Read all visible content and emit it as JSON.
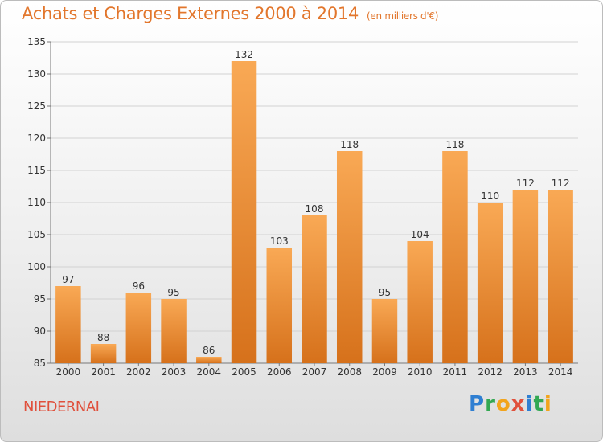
{
  "title": "Achats et Charges Externes 2000 à 2014",
  "subtitle": "(en milliers d'€)",
  "commune": "NIEDERNAI",
  "logo_text": "Proxiti",
  "colors": {
    "bar_light": "#f7a552",
    "bar_dark": "#d8721c",
    "title": "#e2762c",
    "commune": "#e0503c"
  },
  "chart_data": {
    "type": "bar",
    "categories": [
      "2000",
      "2001",
      "2002",
      "2003",
      "2004",
      "2005",
      "2006",
      "2007",
      "2008",
      "2009",
      "2010",
      "2011",
      "2012",
      "2013",
      "2014"
    ],
    "values": [
      97,
      88,
      96,
      95,
      86,
      132,
      103,
      108,
      118,
      95,
      104,
      118,
      110,
      112,
      112
    ],
    "ylim": [
      85,
      135
    ],
    "yticks": [
      85,
      90,
      95,
      100,
      105,
      110,
      115,
      120,
      125,
      130,
      135
    ],
    "grid": true
  }
}
